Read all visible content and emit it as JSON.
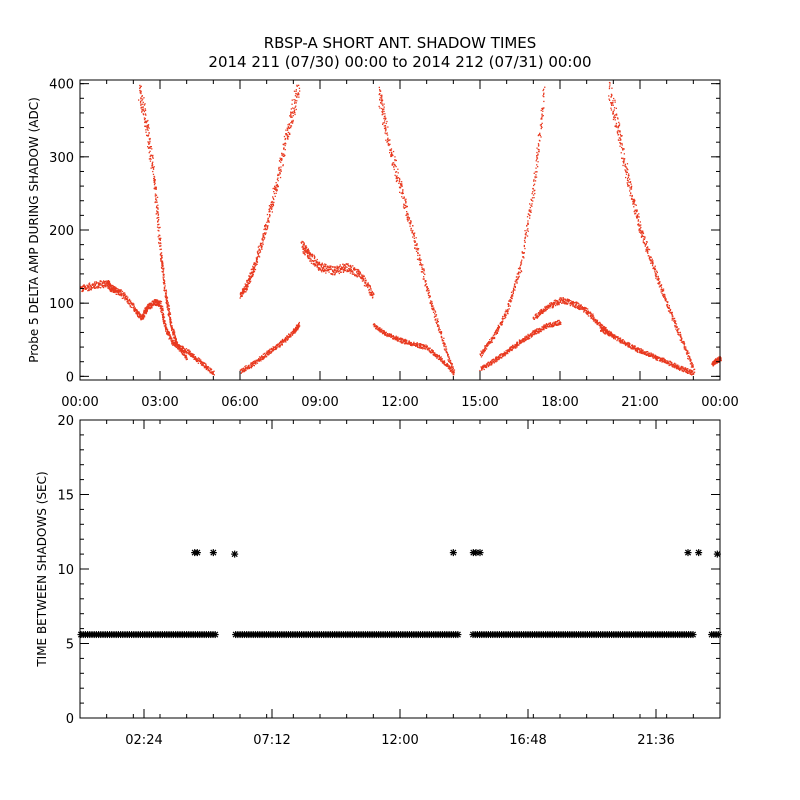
{
  "figure": {
    "title_line1": "RBSP-A SHORT ANT. SHADOW TIMES",
    "title_line2": "2014 211 (07/30) 00:00 to 2014 212 (07/31) 00:00",
    "colors": {
      "points": "#e8391f",
      "axes": "#000000",
      "background": "#ffffff"
    }
  },
  "chart_data": [
    {
      "type": "scatter",
      "name": "delta-amp-panel",
      "ylabel": "Probe 5 DELTA AMP DURING SHADOW (ADC)",
      "xlabel": "",
      "xlim": [
        0,
        24
      ],
      "ylim": [
        -5,
        405
      ],
      "x_unit": "hours",
      "x_ticks": [
        0,
        3,
        6,
        9,
        12,
        15,
        18,
        21,
        24
      ],
      "x_tick_labels": [
        "00:00",
        "03:00",
        "06:00",
        "09:00",
        "12:00",
        "15:00",
        "18:00",
        "21:00",
        "00:00"
      ],
      "y_ticks": [
        0,
        100,
        200,
        300,
        400
      ],
      "y_tick_labels": [
        "0",
        "100",
        "200",
        "300",
        "400"
      ],
      "color": "#e8391f",
      "series": [
        {
          "name": "lower-band-1",
          "x": [
            0,
            0.5,
            1.0,
            1.2,
            1.5,
            2.0,
            2.3,
            2.5,
            2.8,
            3.0,
            3.2,
            3.5,
            4.0,
            4.5,
            5.0
          ],
          "y": [
            120,
            125,
            128,
            120,
            115,
            95,
            80,
            95,
            102,
            100,
            65,
            45,
            35,
            20,
            5
          ]
        },
        {
          "name": "upper-band-1",
          "x": [
            2.2,
            2.5,
            2.8,
            3.0,
            3.2,
            3.4,
            3.6,
            4.0
          ],
          "y": [
            395,
            340,
            260,
            170,
            110,
            70,
            45,
            25
          ]
        },
        {
          "name": "rising-upper-2",
          "x": [
            6.0,
            6.3,
            6.6,
            7.0,
            7.4,
            7.8,
            8.2
          ],
          "y": [
            110,
            130,
            160,
            210,
            270,
            340,
            400
          ]
        },
        {
          "name": "rising-lower-2",
          "x": [
            6.0,
            6.5,
            7.0,
            7.5,
            8.0,
            8.2
          ],
          "y": [
            8,
            18,
            32,
            45,
            62,
            72
          ]
        },
        {
          "name": "mid-cluster-2",
          "x": [
            8.3,
            8.6,
            9.0,
            9.5,
            10.0,
            10.5,
            11.0
          ],
          "y": [
            180,
            165,
            150,
            145,
            150,
            140,
            110
          ]
        },
        {
          "name": "falling-upper-2",
          "x": [
            11.2,
            11.5,
            12.0,
            12.5,
            13.0,
            13.5,
            14.0
          ],
          "y": [
            390,
            330,
            260,
            190,
            120,
            60,
            5
          ]
        },
        {
          "name": "falling-lower-2",
          "x": [
            11.0,
            11.5,
            12.0,
            12.5,
            13.0,
            13.5,
            14.0
          ],
          "y": [
            70,
            58,
            50,
            45,
            40,
            25,
            5
          ]
        },
        {
          "name": "rising-upper-3",
          "x": [
            15.0,
            15.5,
            16.0,
            16.5,
            17.0,
            17.4
          ],
          "y": [
            30,
            55,
            90,
            150,
            260,
            390
          ]
        },
        {
          "name": "rising-lower-3",
          "x": [
            15.0,
            15.5,
            16.0,
            16.5,
            17.0,
            17.5,
            18.0
          ],
          "y": [
            10,
            22,
            35,
            48,
            60,
            70,
            75
          ]
        },
        {
          "name": "mid-cluster-3",
          "x": [
            17.0,
            17.5,
            18.0,
            18.5,
            19.0,
            19.5,
            20.0
          ],
          "y": [
            80,
            95,
            105,
            100,
            90,
            70,
            55
          ]
        },
        {
          "name": "falling-upper-3",
          "x": [
            19.8,
            20.2,
            20.6,
            21.0,
            21.5,
            22.0,
            22.5,
            23.0
          ],
          "y": [
            400,
            330,
            260,
            200,
            150,
            100,
            55,
            10
          ]
        },
        {
          "name": "falling-lower-3",
          "x": [
            19.5,
            20.0,
            20.5,
            21.0,
            21.5,
            22.0,
            22.5,
            23.0
          ],
          "y": [
            65,
            55,
            45,
            35,
            28,
            20,
            12,
            5
          ]
        },
        {
          "name": "end-fragment",
          "x": [
            23.7,
            23.85,
            24.0
          ],
          "y": [
            18,
            22,
            25
          ]
        }
      ]
    },
    {
      "type": "scatter",
      "name": "time-between-shadows-panel",
      "ylabel": "TIME BETWEEN SHADOWS (SEC)",
      "xlabel": "",
      "xlim": [
        0,
        24
      ],
      "ylim": [
        0,
        20
      ],
      "x_unit": "hours",
      "x_ticks": [
        2.4,
        7.2,
        12.0,
        16.8,
        21.6
      ],
      "x_tick_labels": [
        "02:24",
        "07:12",
        "12:00",
        "16:48",
        "21:36"
      ],
      "y_ticks": [
        0,
        5,
        10,
        15,
        20
      ],
      "y_tick_labels": [
        "0",
        "5",
        "10",
        "15",
        "20"
      ],
      "marker": "asterisk",
      "series": [
        {
          "name": "baseline-segments",
          "segments": [
            [
              0.0,
              5.1,
              5.6
            ],
            [
              5.8,
              14.2,
              5.6
            ],
            [
              14.7,
              23.0,
              5.6
            ],
            [
              23.65,
              24.0,
              5.6
            ]
          ]
        },
        {
          "name": "outliers",
          "x": [
            4.3,
            4.4,
            5.0,
            5.8,
            14.0,
            14.75,
            14.85,
            15.0,
            22.8,
            23.2,
            23.9
          ],
          "y": [
            11.1,
            11.1,
            11.1,
            11.0,
            11.1,
            11.1,
            11.1,
            11.1,
            11.1,
            11.1,
            11.0
          ]
        }
      ]
    }
  ]
}
